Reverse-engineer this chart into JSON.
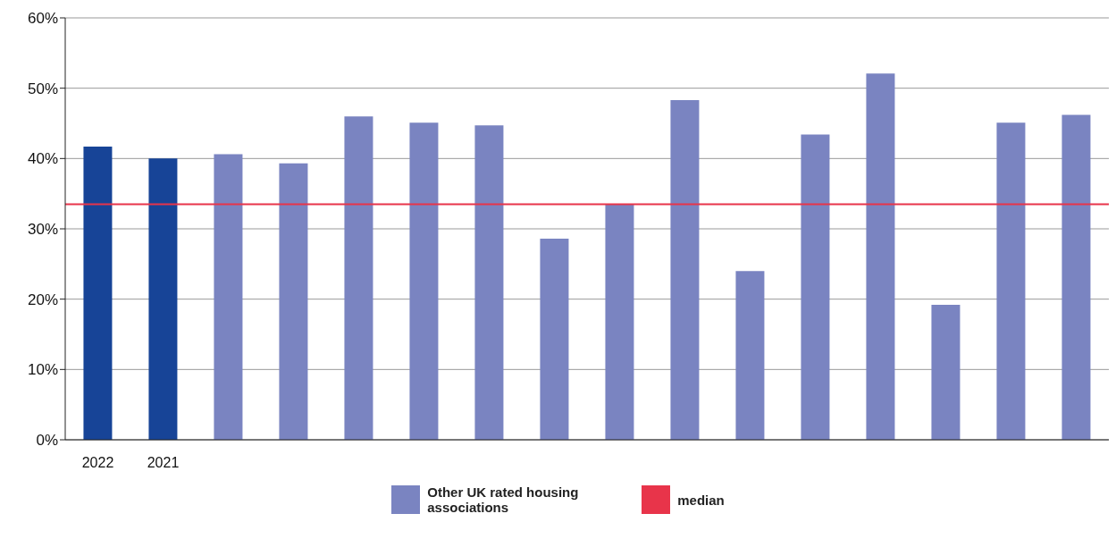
{
  "chart_data": {
    "type": "bar",
    "categories": [
      "2022",
      "2021",
      null,
      null,
      null,
      null,
      null,
      null,
      null,
      null,
      null,
      null,
      null,
      null,
      null,
      null
    ],
    "series": [
      {
        "color": "#174497",
        "values": [
          41.7,
          40.0,
          null,
          null,
          null,
          null,
          null,
          null,
          null,
          null,
          null,
          null,
          null,
          null,
          null,
          null
        ]
      },
      {
        "name": "Other UK rated housing associations",
        "color": "#7a84c1",
        "values": [
          null,
          null,
          40.6,
          39.3,
          46.0,
          45.1,
          44.7,
          28.6,
          33.5,
          48.3,
          24.0,
          43.4,
          52.1,
          19.2,
          45.1,
          46.2
        ]
      }
    ],
    "stacked": true,
    "ylim": [
      0,
      60
    ],
    "yticks": [
      {
        "value": 0,
        "label": "0%"
      },
      {
        "value": 10,
        "label": "10%"
      },
      {
        "value": 20,
        "label": "20%"
      },
      {
        "value": 30,
        "label": "30%"
      },
      {
        "value": 40,
        "label": "40%"
      },
      {
        "value": 50,
        "label": "50%"
      },
      {
        "value": 60,
        "label": "60%"
      }
    ],
    "ref_lines": [
      {
        "axis": "y",
        "value": 33.5,
        "label": "median",
        "color": "#e8344a"
      }
    ],
    "grid": "y",
    "legend": "bottom"
  }
}
